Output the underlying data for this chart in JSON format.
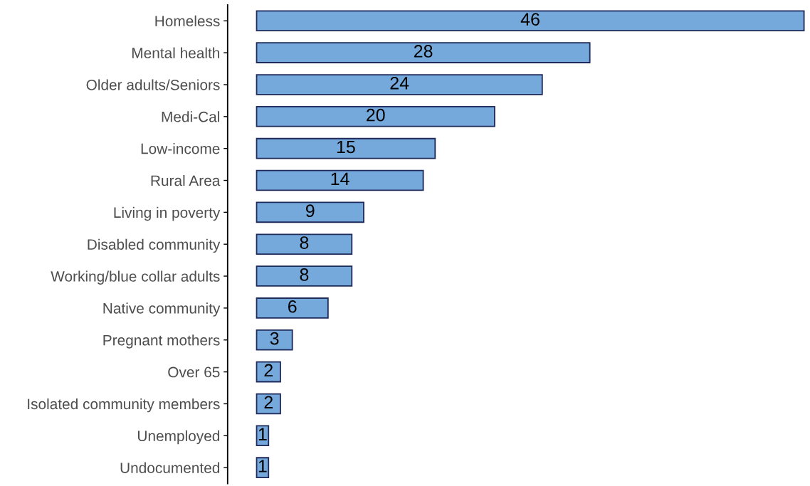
{
  "chart_data": {
    "type": "bar",
    "orientation": "horizontal",
    "data_labels": true,
    "color": "#75a9dc",
    "grid": false,
    "categories": [
      "Homeless",
      "Mental health",
      "Older adults/Seniors",
      "Medi-Cal",
      "Low-income",
      "Rural Area",
      "Living in poverty",
      "Disabled community",
      "Working/blue collar adults",
      "Native community",
      "Pregnant mothers",
      "Over 65",
      "Isolated community members",
      "Unemployed",
      "Undocumented"
    ],
    "values": [
      46,
      28,
      24,
      20,
      15,
      14,
      9,
      8,
      8,
      6,
      3,
      2,
      2,
      1,
      1
    ]
  }
}
